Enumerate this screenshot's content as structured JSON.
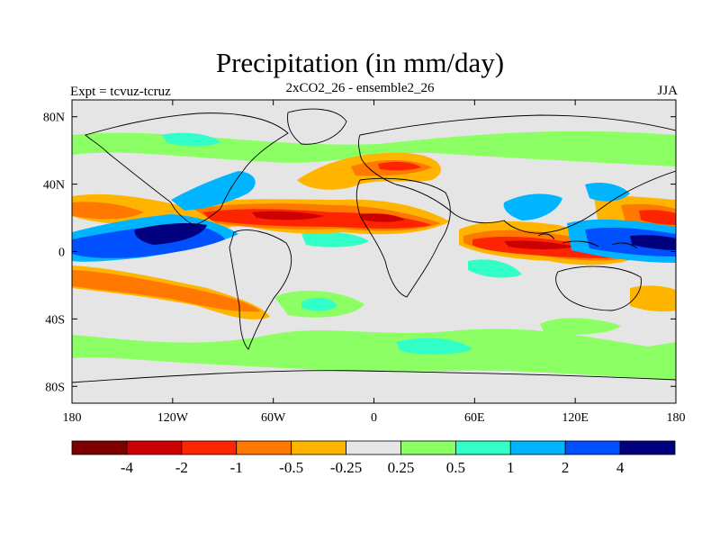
{
  "map": {
    "title": "Precipitation (in mm/day)",
    "subtitle": "2xCO2_26 - ensemble2_26",
    "left_label": "Expt = tcvuz-tcruz",
    "right_label": "JJA",
    "lat_ticks": [
      {
        "value": 80,
        "label": "80N"
      },
      {
        "value": 40,
        "label": "40N"
      },
      {
        "value": 0,
        "label": "0"
      },
      {
        "value": -40,
        "label": "40S"
      },
      {
        "value": -80,
        "label": "80S"
      }
    ],
    "lon_ticks": [
      {
        "value": -180,
        "label": "180"
      },
      {
        "value": -120,
        "label": "120W"
      },
      {
        "value": -60,
        "label": "60W"
      },
      {
        "value": 0,
        "label": "0"
      },
      {
        "value": 60,
        "label": "60E"
      },
      {
        "value": 120,
        "label": "120E"
      },
      {
        "value": 180,
        "label": "180"
      }
    ],
    "lon_range": [
      -180,
      180
    ],
    "lat_range": [
      -90,
      90
    ],
    "background_color": "#e5e5e5"
  },
  "colorbar": {
    "colors": [
      "#7f0000",
      "#cc0000",
      "#ff2400",
      "#ff7800",
      "#ffb400",
      "#e5e5e5",
      "#8cff64",
      "#32ffc8",
      "#00b4ff",
      "#0050ff",
      "#00007f"
    ],
    "labels": [
      "-4",
      "-2",
      "-1",
      "-0.5",
      "-0.25",
      "0.25",
      "0.5",
      "1",
      "2",
      "4"
    ]
  }
}
